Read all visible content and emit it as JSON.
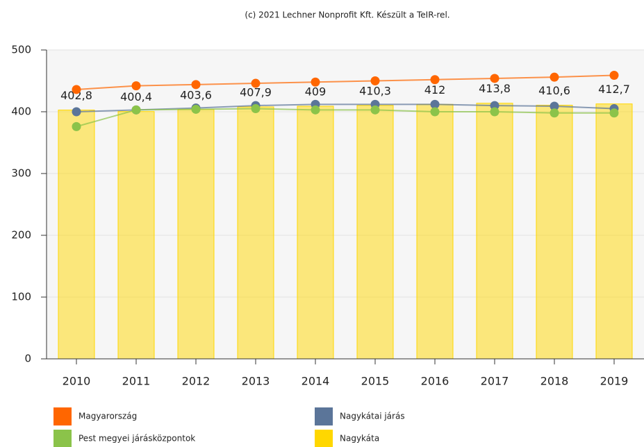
{
  "chart_data": {
    "type": "bar",
    "title": "(c) 2021 Lechner Nonprofit Kft. Készült a TeIR-rel.",
    "categories": [
      "2010",
      "2011",
      "2012",
      "2013",
      "2014",
      "2015",
      "2016",
      "2017",
      "2018",
      "2019"
    ],
    "series": [
      {
        "name": "Magyarország",
        "type": "line",
        "color": "#ff6600",
        "values": [
          436,
          442,
          444,
          446,
          448,
          450,
          452,
          454,
          456,
          459
        ]
      },
      {
        "name": "Nagykátai járás",
        "type": "line",
        "color": "#5b7599",
        "values": [
          400,
          403,
          406,
          410,
          412,
          412,
          412,
          410,
          409,
          405
        ]
      },
      {
        "name": "Pest megyei járásközpontok",
        "type": "line",
        "color": "#8bc34a",
        "values": [
          376,
          403,
          404,
          405,
          403,
          403,
          400,
          400,
          398,
          398
        ]
      },
      {
        "name": "Nagykáta",
        "type": "bar",
        "color": "#ffd700",
        "values": [
          402.8,
          400.4,
          403.6,
          407.9,
          409,
          410.3,
          412,
          413.8,
          410.6,
          412.7
        ],
        "value_labels": [
          "402,8",
          "400,4",
          "403,6",
          "407,9",
          "409",
          "410,3",
          "412",
          "413,8",
          "410,6",
          "412,7"
        ]
      }
    ],
    "ylim": [
      0,
      500
    ],
    "yticks": [
      0,
      100,
      200,
      300,
      400,
      500
    ],
    "grid": true
  }
}
